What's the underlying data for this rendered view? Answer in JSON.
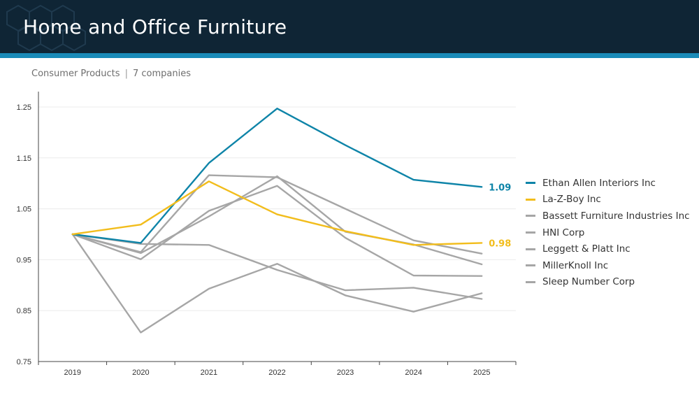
{
  "header": {
    "title": "Home and Office Furniture"
  },
  "subtitle": {
    "category": "Consumer Products",
    "separator": "|",
    "count": "7 companies"
  },
  "colors": {
    "header_bg": "#0f2535",
    "accent": "#1a8bb8",
    "highlight_blue": "#0e84a8",
    "highlight_yellow": "#f2bd1c",
    "muted": "#a6a6a6"
  },
  "chart_data": {
    "type": "line",
    "x": [
      "2019",
      "2020",
      "2021",
      "2022",
      "2023",
      "2024",
      "2025"
    ],
    "ylim": [
      0.75,
      1.25
    ],
    "yticks": [
      "0.75",
      "0.85",
      "0.95",
      "1.05",
      "1.15",
      "1.25"
    ],
    "legend_position": "right",
    "series": [
      {
        "name": "Ethan Allen Interiors Inc",
        "color": "#0e84a8",
        "end_label": "1.09",
        "values": [
          1.0,
          0.983,
          1.14,
          1.247,
          1.175,
          1.107,
          1.093
        ]
      },
      {
        "name": "La-Z-Boy Inc",
        "color": "#f2bd1c",
        "end_label": "0.98",
        "values": [
          1.0,
          1.019,
          1.104,
          1.039,
          1.006,
          0.979,
          0.983
        ]
      },
      {
        "name": "Bassett Furniture Industries Inc",
        "color": "#a6a6a6",
        "values": [
          1.0,
          0.965,
          1.116,
          1.112,
          1.05,
          0.988,
          0.962
        ]
      },
      {
        "name": "HNI Corp",
        "color": "#a6a6a6",
        "values": [
          1.0,
          0.981,
          0.979,
          0.93,
          0.89,
          0.895,
          0.873
        ]
      },
      {
        "name": "Leggett & Platt Inc",
        "color": "#a6a6a6",
        "values": [
          1.0,
          0.807,
          0.893,
          0.942,
          0.88,
          0.848,
          0.884
        ]
      },
      {
        "name": "MillerKnoll Inc",
        "color": "#a6a6a6",
        "values": [
          1.0,
          0.951,
          1.046,
          1.095,
          0.993,
          0.919,
          0.918
        ]
      },
      {
        "name": "Sleep Number Corp",
        "color": "#a6a6a6",
        "values": [
          1.0,
          0.963,
          1.035,
          1.114,
          1.005,
          0.98,
          0.941
        ]
      }
    ]
  }
}
